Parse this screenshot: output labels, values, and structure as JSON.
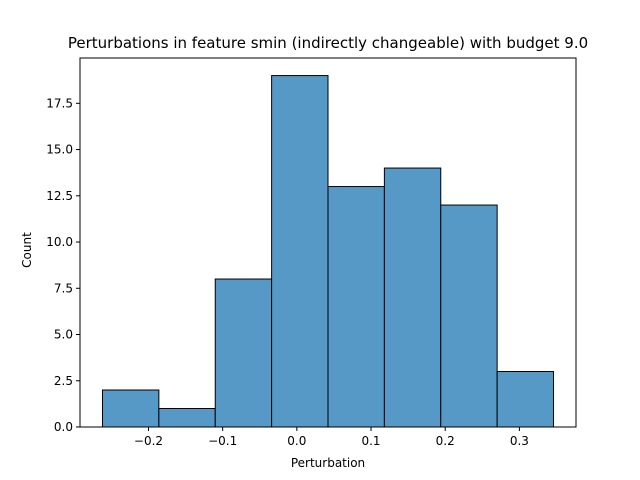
{
  "chart_data": {
    "type": "bar",
    "title": "Perturbations in feature smin (indirectly changeable) with budget 9.0",
    "xlabel": "Perturbation",
    "ylabel": "Count",
    "bin_edges": [
      -0.262,
      -0.186,
      -0.11,
      -0.034,
      0.042,
      0.118,
      0.194,
      0.27,
      0.346
    ],
    "values": [
      2,
      1,
      8,
      19,
      13,
      14,
      12,
      3
    ],
    "xlim": [
      -0.2923,
      0.3763
    ],
    "ylim": [
      0,
      19.95
    ],
    "xticks": [
      -0.2,
      -0.1,
      0.0,
      0.1,
      0.2,
      0.3
    ],
    "xtick_labels": [
      "−0.2",
      "−0.1",
      "0.0",
      "0.1",
      "0.2",
      "0.3"
    ],
    "yticks": [
      0,
      2.5,
      5,
      7.5,
      10,
      12.5,
      15,
      17.5
    ],
    "ytick_labels": [
      "0.0",
      "2.5",
      "5.0",
      "7.5",
      "10.0",
      "12.5",
      "15.0",
      "17.5"
    ],
    "bar_color": "#5799c6",
    "edge_color": "#000000",
    "grid": false,
    "legend": "none"
  }
}
